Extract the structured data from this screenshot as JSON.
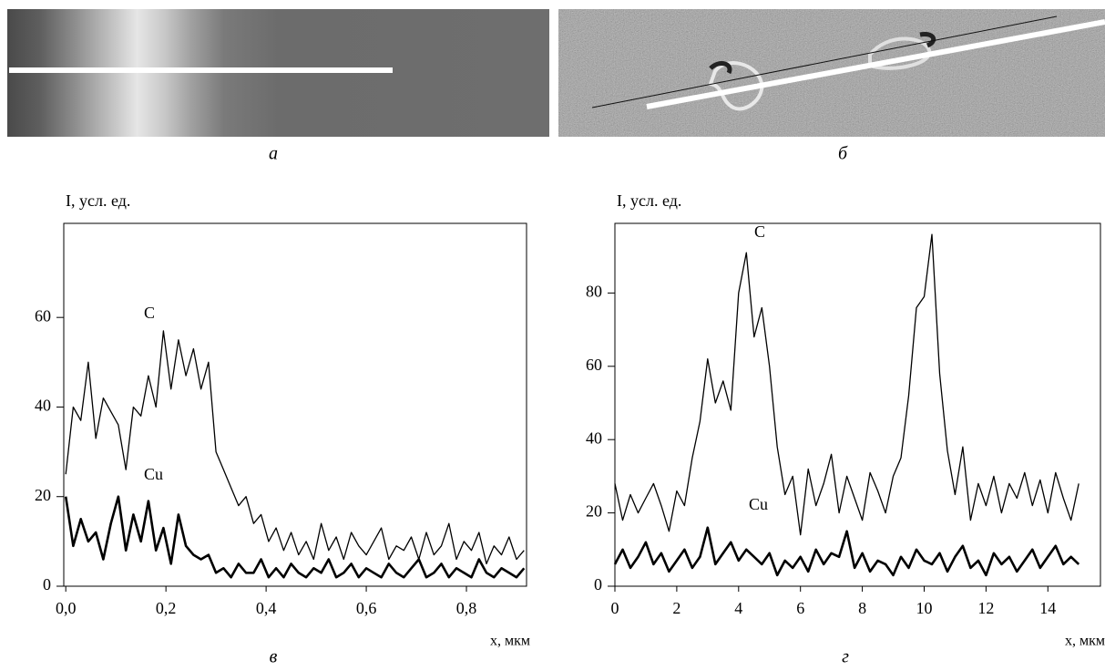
{
  "panels": [
    {
      "caption": "а"
    },
    {
      "caption": "б"
    }
  ],
  "chart_data": [
    {
      "type": "line",
      "caption": "в",
      "y_label": "I, усл. ед.",
      "x_label": "x, мкм",
      "xlim": [
        -0.004,
        0.92
      ],
      "ylim": [
        0,
        81
      ],
      "xticks": [
        {
          "value": 0,
          "label": "0,0"
        },
        {
          "value": 0.2,
          "label": "0,2"
        },
        {
          "value": 0.4,
          "label": "0,4"
        },
        {
          "value": 0.6,
          "label": "0,6"
        },
        {
          "value": 0.8,
          "label": "0,8"
        }
      ],
      "yticks": [
        0,
        20,
        40,
        60
      ],
      "x": [
        0,
        0.015,
        0.03,
        0.045,
        0.06,
        0.075,
        0.09,
        0.105,
        0.12,
        0.135,
        0.15,
        0.165,
        0.18,
        0.195,
        0.21,
        0.225,
        0.24,
        0.255,
        0.27,
        0.285,
        0.3,
        0.315,
        0.33,
        0.345,
        0.36,
        0.375,
        0.39,
        0.405,
        0.42,
        0.435,
        0.45,
        0.465,
        0.48,
        0.495,
        0.51,
        0.525,
        0.54,
        0.555,
        0.57,
        0.585,
        0.6,
        0.615,
        0.63,
        0.645,
        0.66,
        0.675,
        0.69,
        0.705,
        0.72,
        0.735,
        0.75,
        0.765,
        0.78,
        0.795,
        0.81,
        0.825,
        0.84,
        0.855,
        0.87,
        0.885,
        0.9,
        0.915
      ],
      "series": [
        {
          "name": "C",
          "color": "#000000",
          "values": [
            25,
            40,
            37,
            50,
            33,
            42,
            39,
            36,
            26,
            40,
            38,
            47,
            40,
            57,
            44,
            55,
            47,
            53,
            44,
            50,
            30,
            26,
            22,
            18,
            20,
            14,
            16,
            10,
            13,
            8,
            12,
            7,
            10,
            6,
            14,
            8,
            11,
            6,
            12,
            9,
            7,
            10,
            13,
            6,
            9,
            8,
            11,
            6,
            12,
            7,
            9,
            14,
            6,
            10,
            8,
            12,
            5,
            9,
            7,
            11,
            6,
            8
          ]
        },
        {
          "name": "Cu",
          "color": "#000000",
          "values": [
            20,
            9,
            15,
            10,
            12,
            6,
            14,
            20,
            8,
            16,
            10,
            19,
            8,
            13,
            5,
            16,
            9,
            7,
            6,
            7,
            3,
            4,
            2,
            5,
            3,
            3,
            6,
            2,
            4,
            2,
            5,
            3,
            2,
            4,
            3,
            6,
            2,
            3,
            5,
            2,
            4,
            3,
            2,
            5,
            3,
            2,
            4,
            6,
            2,
            3,
            5,
            2,
            4,
            3,
            2,
            6,
            3,
            2,
            4,
            3,
            2,
            4
          ]
        }
      ]
    },
    {
      "type": "line",
      "caption": "г",
      "y_label": "I, усл. ед.",
      "x_label": "x, мкм",
      "xlim": [
        0,
        15.7
      ],
      "ylim": [
        0,
        99
      ],
      "xticks": [
        0,
        2,
        4,
        6,
        8,
        10,
        12,
        14
      ],
      "yticks": [
        0,
        20,
        40,
        60,
        80
      ],
      "x": [
        0,
        0.25,
        0.5,
        0.75,
        1,
        1.25,
        1.5,
        1.75,
        2,
        2.25,
        2.5,
        2.75,
        3,
        3.25,
        3.5,
        3.75,
        4,
        4.25,
        4.5,
        4.75,
        5,
        5.25,
        5.5,
        5.75,
        6,
        6.25,
        6.5,
        6.75,
        7,
        7.25,
        7.5,
        7.75,
        8,
        8.25,
        8.5,
        8.75,
        9,
        9.25,
        9.5,
        9.75,
        10,
        10.25,
        10.5,
        10.75,
        11,
        11.25,
        11.5,
        11.75,
        12,
        12.25,
        12.5,
        12.75,
        13,
        13.25,
        13.5,
        13.75,
        14,
        14.25,
        14.5,
        14.75,
        15
      ],
      "series": [
        {
          "name": "C",
          "color": "#000000",
          "values": [
            28,
            18,
            25,
            20,
            24,
            28,
            22,
            15,
            26,
            22,
            35,
            45,
            62,
            50,
            56,
            48,
            80,
            91,
            68,
            76,
            60,
            38,
            25,
            30,
            14,
            32,
            22,
            28,
            36,
            20,
            30,
            24,
            18,
            31,
            26,
            20,
            30,
            35,
            52,
            76,
            79,
            96,
            58,
            37,
            25,
            38,
            18,
            28,
            22,
            30,
            20,
            28,
            24,
            31,
            22,
            29,
            20,
            31,
            24,
            18,
            28
          ]
        },
        {
          "name": "Cu",
          "color": "#000000",
          "values": [
            6,
            10,
            5,
            8,
            12,
            6,
            9,
            4,
            7,
            10,
            5,
            8,
            16,
            6,
            9,
            12,
            7,
            10,
            8,
            6,
            9,
            3,
            7,
            5,
            8,
            4,
            10,
            6,
            9,
            8,
            15,
            5,
            9,
            4,
            7,
            6,
            3,
            8,
            5,
            10,
            7,
            6,
            9,
            4,
            8,
            11,
            5,
            7,
            3,
            9,
            6,
            8,
            4,
            7,
            10,
            5,
            8,
            11,
            6,
            8,
            6
          ]
        }
      ]
    }
  ]
}
